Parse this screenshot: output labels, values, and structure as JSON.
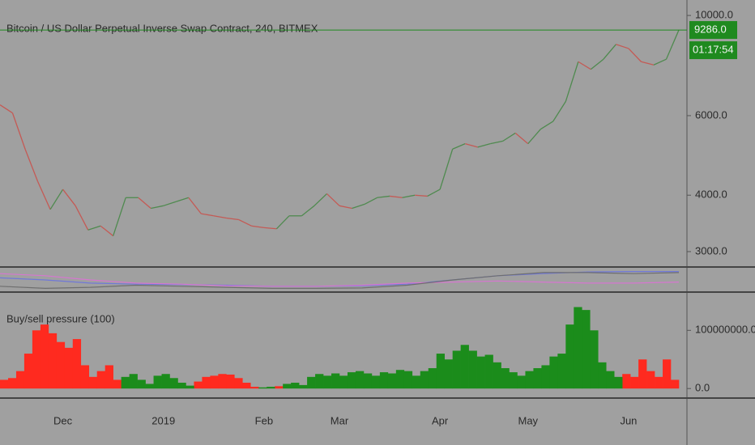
{
  "chart_data": [
    {
      "type": "line",
      "title": "Bitcoin / US Dollar Perpetual Inverse Swap Contract, 240, BITMEX",
      "categories": [
        null,
        null,
        null,
        null,
        null,
        "Dec",
        null,
        null,
        null,
        null,
        null,
        null,
        null,
        "2019",
        null,
        null,
        null,
        null,
        null,
        null,
        null,
        "Feb",
        null,
        null,
        null,
        null,
        null,
        "Mar",
        null,
        null,
        null,
        null,
        null,
        null,
        null,
        "Apr",
        null,
        null,
        null,
        null,
        null,
        null,
        "May",
        null,
        null,
        null,
        null,
        null,
        null,
        null,
        "Jun",
        null,
        null,
        null,
        null
      ],
      "values": [
        6340,
        6080,
        5060,
        4290,
        3720,
        4120,
        3790,
        3350,
        3420,
        3250,
        3950,
        3950,
        3740,
        3790,
        3870,
        3950,
        3640,
        3600,
        3560,
        3530,
        3420,
        3390,
        3370,
        3600,
        3600,
        3790,
        4030,
        3790,
        3740,
        3820,
        3950,
        3980,
        3950,
        4000,
        3980,
        4120,
        5060,
        5200,
        5110,
        5200,
        5270,
        5490,
        5200,
        5600,
        5830,
        6450,
        7900,
        7600,
        8000,
        8630,
        8450,
        7900,
        7770,
        8000,
        9286
      ],
      "up_color": "#4f8a4f",
      "down_color": "#c45a55",
      "log_scale": true,
      "ylim": [
        2785,
        10820
      ],
      "yticks": [
        {
          "value": 3000,
          "label": "3000.0"
        },
        {
          "value": 4000,
          "label": "4000.0"
        },
        {
          "value": 6000,
          "label": "6000.0"
        },
        {
          "value": 10000,
          "label": "10000.0"
        }
      ],
      "last_price": {
        "value": 9286,
        "label": "9286.0"
      },
      "last_price_color": "#1f8a1f",
      "countdown": "01:17:54"
    },
    {
      "type": "line",
      "ylim": [
        0,
        100
      ],
      "series": [
        {
          "color": "#7078d8",
          "values": [
            60,
            50,
            35,
            30,
            28,
            25,
            20,
            20,
            22,
            30,
            50,
            70,
            80,
            88,
            90,
            90
          ]
        },
        {
          "color": "#d676d0",
          "values": [
            80,
            70,
            50,
            35,
            30,
            22,
            20,
            20,
            25,
            35,
            40,
            45,
            40,
            35,
            35,
            40
          ]
        },
        {
          "color": "#6e6e6e",
          "values": [
            20,
            10,
            15,
            25,
            20,
            15,
            10,
            10,
            12,
            25,
            50,
            70,
            85,
            85,
            80,
            85
          ]
        }
      ]
    },
    {
      "type": "bar",
      "title": "Buy/sell pressure (100)",
      "ylim": [
        -15000000,
        163000000
      ],
      "yticks": [
        {
          "value": 0,
          "label": "0.0"
        },
        {
          "value": 100000000,
          "label": "100000000.0"
        }
      ],
      "series": [
        {
          "color": "#ff2a1f",
          "values": [
            15000000,
            18000000,
            30000000,
            60000000,
            100000000,
            110000000,
            95000000,
            80000000,
            70000000,
            85000000,
            40000000,
            20000000,
            30000000,
            40000000,
            15000000,
            null,
            null,
            null,
            null,
            null,
            null,
            null,
            null,
            null,
            12000000,
            20000000,
            22000000,
            25000000,
            24000000,
            18000000,
            10000000,
            3000000,
            null,
            null,
            4000000,
            null,
            null,
            null,
            null,
            null,
            null,
            null,
            null,
            null,
            null,
            null,
            null,
            null,
            null,
            null,
            null,
            null,
            null,
            null,
            null,
            null,
            null,
            null,
            null,
            null,
            null,
            null,
            null,
            null,
            null,
            null,
            null,
            null,
            null,
            null,
            null,
            null,
            null,
            null,
            null,
            null,
            null,
            25000000,
            20000000,
            50000000,
            30000000,
            20000000,
            50000000,
            15000000
          ]
        },
        {
          "color": "#1b8c1b",
          "values": [
            null,
            null,
            null,
            null,
            null,
            null,
            null,
            null,
            null,
            null,
            null,
            null,
            null,
            null,
            null,
            20000000,
            25000000,
            15000000,
            8000000,
            22000000,
            25000000,
            18000000,
            10000000,
            5000000,
            null,
            null,
            null,
            null,
            null,
            null,
            null,
            null,
            2000000,
            3000000,
            null,
            8000000,
            10000000,
            6000000,
            20000000,
            25000000,
            22000000,
            26000000,
            22000000,
            28000000,
            30000000,
            26000000,
            22000000,
            28000000,
            26000000,
            32000000,
            30000000,
            22000000,
            30000000,
            35000000,
            60000000,
            50000000,
            65000000,
            75000000,
            65000000,
            55000000,
            58000000,
            45000000,
            35000000,
            28000000,
            22000000,
            30000000,
            35000000,
            40000000,
            55000000,
            60000000,
            110000000,
            140000000,
            135000000,
            100000000,
            45000000,
            30000000,
            20000000,
            null,
            null,
            null,
            null,
            null,
            null,
            null
          ]
        }
      ]
    }
  ]
}
